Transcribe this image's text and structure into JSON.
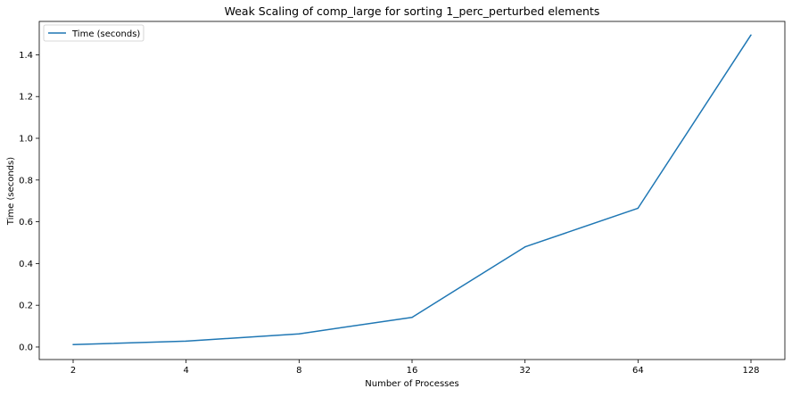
{
  "chart_data": {
    "type": "line",
    "title": "Weak Scaling of comp_large for sorting 1_perc_perturbed elements",
    "xlabel": "Number of Processes",
    "ylabel": "Time (seconds)",
    "categories": [
      "2",
      "4",
      "8",
      "16",
      "32",
      "64",
      "128"
    ],
    "x": [
      2,
      4,
      8,
      16,
      32,
      64,
      128
    ],
    "series": [
      {
        "name": "Time (seconds)",
        "values": [
          0.012,
          0.028,
          0.063,
          0.142,
          0.48,
          0.665,
          1.495
        ],
        "color": "#1f77b4"
      }
    ],
    "ylim": [
      -0.06,
      1.56
    ],
    "yticks": [
      "0.0",
      "0.2",
      "0.4",
      "0.6",
      "0.8",
      "1.0",
      "1.2",
      "1.4"
    ],
    "grid": false,
    "legend_position": "top-left"
  }
}
